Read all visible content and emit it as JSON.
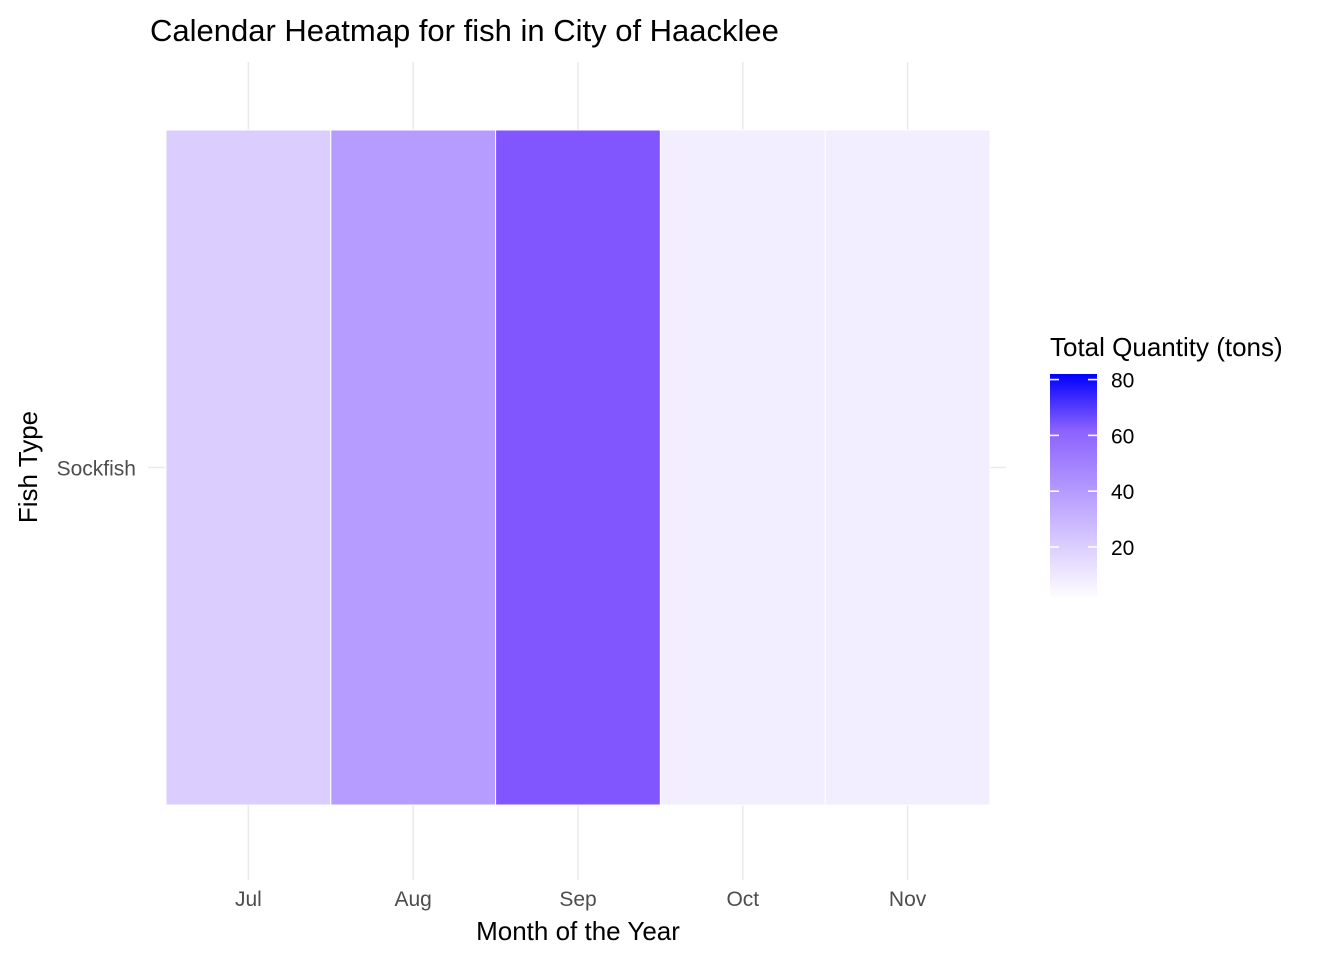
{
  "chart_data": {
    "type": "heatmap",
    "title": "Calendar Heatmap for fish in City of Haacklee",
    "xlabel": "Month of the Year",
    "ylabel": "Fish Type",
    "x_categories": [
      "Jul",
      "Aug",
      "Sep",
      "Oct",
      "Nov"
    ],
    "y_categories": [
      "Sockfish"
    ],
    "values": [
      [
        20,
        39,
        66,
        8,
        8
      ]
    ],
    "grid": true,
    "legend": {
      "title": "Total Quantity (tons)",
      "placement": "right",
      "ticks": [
        20,
        40,
        60,
        80
      ],
      "min": 1,
      "max": 82,
      "low_color": "#ffffff",
      "high_color": "#0000ff"
    }
  }
}
